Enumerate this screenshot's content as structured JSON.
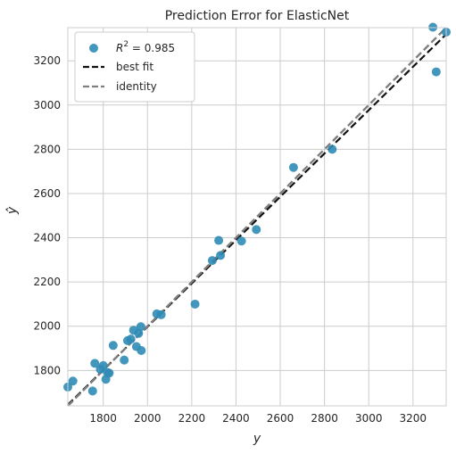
{
  "chart_data": {
    "type": "scatter",
    "title": "Prediction Error for ElasticNet",
    "xlabel": "y",
    "ylabel": "ŷ",
    "xlim": [
      1640,
      3350
    ],
    "ylim": [
      1640,
      3350
    ],
    "x_ticks": [
      "1800",
      "2000",
      "2200",
      "2400",
      "2600",
      "2800",
      "3000",
      "3200"
    ],
    "y_ticks": [
      "1800",
      "2000",
      "2200",
      "2400",
      "2600",
      "2800",
      "3000",
      "3200"
    ],
    "grid": true,
    "legend_position": "top-left",
    "legend": {
      "r2_label": "R",
      "r2_sup": "2",
      "r2_value": " = 0.985",
      "best_fit_label": "best fit",
      "identity_label": "identity"
    },
    "colors": {
      "points": "#2f8bb5",
      "best_fit": "#111111",
      "identity": "#7f7f7f",
      "grid": "#cccccc",
      "axes": "#cccccc"
    },
    "points": [
      {
        "x": 1640,
        "y": 1725
      },
      {
        "x": 1663,
        "y": 1752
      },
      {
        "x": 1752,
        "y": 1707
      },
      {
        "x": 1762,
        "y": 1832
      },
      {
        "x": 1787,
        "y": 1805
      },
      {
        "x": 1800,
        "y": 1822
      },
      {
        "x": 1812,
        "y": 1760
      },
      {
        "x": 1820,
        "y": 1790
      },
      {
        "x": 1827,
        "y": 1788
      },
      {
        "x": 1845,
        "y": 1913
      },
      {
        "x": 1895,
        "y": 1847
      },
      {
        "x": 1910,
        "y": 1935
      },
      {
        "x": 1925,
        "y": 1942
      },
      {
        "x": 1937,
        "y": 1982
      },
      {
        "x": 1950,
        "y": 1908
      },
      {
        "x": 1960,
        "y": 1968
      },
      {
        "x": 1970,
        "y": 1998
      },
      {
        "x": 1972,
        "y": 1890
      },
      {
        "x": 2042,
        "y": 2056
      },
      {
        "x": 2062,
        "y": 2052
      },
      {
        "x": 2215,
        "y": 2100
      },
      {
        "x": 2293,
        "y": 2297
      },
      {
        "x": 2322,
        "y": 2388
      },
      {
        "x": 2330,
        "y": 2320
      },
      {
        "x": 2425,
        "y": 2385
      },
      {
        "x": 2492,
        "y": 2437
      },
      {
        "x": 2660,
        "y": 2718
      },
      {
        "x": 2835,
        "y": 2800
      },
      {
        "x": 3290,
        "y": 3352
      },
      {
        "x": 3305,
        "y": 3150
      },
      {
        "x": 3350,
        "y": 3330
      }
    ],
    "best_fit": {
      "x": [
        1640,
        3350
      ],
      "y": [
        1645,
        3320
      ]
    }
  }
}
